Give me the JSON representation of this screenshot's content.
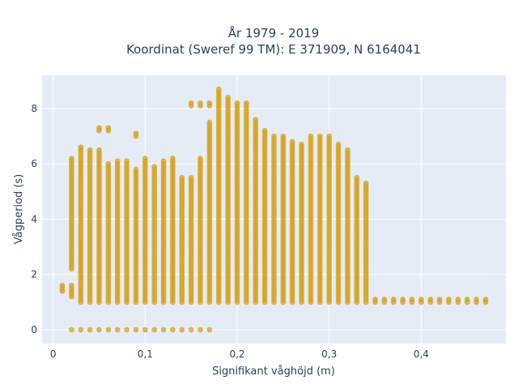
{
  "chart_data": {
    "type": "scatter",
    "title_lines": [
      "År 1979 - 2019",
      "Koordinat (Sweref 99 TM): E 371909, N 6164041"
    ],
    "xlabel": "Signifikant våghöjd (m)",
    "ylabel": "Vågperiod (s)",
    "xlim": [
      -0.012,
      0.492
    ],
    "ylim": [
      -0.5,
      9.2
    ],
    "xticks": [
      {
        "value": 0,
        "label": "0"
      },
      {
        "value": 0.1,
        "label": "0,1"
      },
      {
        "value": 0.2,
        "label": "0,2"
      },
      {
        "value": 0.3,
        "label": "0,3"
      },
      {
        "value": 0.4,
        "label": "0,4"
      }
    ],
    "yticks": [
      {
        "value": 0,
        "label": "0"
      },
      {
        "value": 2,
        "label": "2"
      },
      {
        "value": 4,
        "label": "4"
      },
      {
        "value": 6,
        "label": "6"
      },
      {
        "value": 8,
        "label": "8"
      }
    ],
    "grid": true,
    "marker_color": "#d4a017",
    "series": [
      {
        "columns": [
          [
            0.01,
            [
              [
                1.4,
                1.6
              ]
            ]
          ],
          [
            0.02,
            [
              [
                0,
                0
              ],
              [
                1.2,
                1.6
              ],
              [
                2.2,
                6.2
              ]
            ]
          ],
          [
            0.03,
            [
              [
                0,
                0
              ],
              [
                1.0,
                6.6
              ]
            ]
          ],
          [
            0.04,
            [
              [
                0,
                0
              ],
              [
                1.0,
                6.5
              ]
            ]
          ],
          [
            0.05,
            [
              [
                0,
                0
              ],
              [
                1.0,
                6.5
              ],
              [
                7.2,
                7.3
              ]
            ]
          ],
          [
            0.06,
            [
              [
                0,
                0
              ],
              [
                1.0,
                6.0
              ],
              [
                7.2,
                7.3
              ]
            ]
          ],
          [
            0.07,
            [
              [
                0,
                0
              ],
              [
                1.0,
                6.1
              ]
            ]
          ],
          [
            0.08,
            [
              [
                0,
                0
              ],
              [
                1.0,
                6.1
              ]
            ]
          ],
          [
            0.09,
            [
              [
                0,
                0
              ],
              [
                1.0,
                5.8
              ],
              [
                7.0,
                7.1
              ]
            ]
          ],
          [
            0.1,
            [
              [
                0,
                0
              ],
              [
                1.0,
                6.2
              ]
            ]
          ],
          [
            0.11,
            [
              [
                0,
                0
              ],
              [
                1.0,
                5.9
              ]
            ]
          ],
          [
            0.12,
            [
              [
                0,
                0
              ],
              [
                1.0,
                6.1
              ]
            ]
          ],
          [
            0.13,
            [
              [
                0,
                0
              ],
              [
                1.0,
                6.2
              ]
            ]
          ],
          [
            0.14,
            [
              [
                0,
                0
              ],
              [
                1.0,
                5.5
              ]
            ]
          ],
          [
            0.15,
            [
              [
                0,
                0
              ],
              [
                1.0,
                5.5
              ],
              [
                8.1,
                8.2
              ]
            ]
          ],
          [
            0.16,
            [
              [
                0,
                0
              ],
              [
                1.0,
                6.2
              ],
              [
                8.1,
                8.2
              ]
            ]
          ],
          [
            0.17,
            [
              [
                0,
                0
              ],
              [
                1.0,
                7.5
              ],
              [
                8.1,
                8.2
              ]
            ]
          ],
          [
            0.18,
            [
              [
                1.0,
                8.7
              ]
            ]
          ],
          [
            0.19,
            [
              [
                1.0,
                8.4
              ]
            ]
          ],
          [
            0.2,
            [
              [
                1.0,
                8.2
              ]
            ]
          ],
          [
            0.21,
            [
              [
                1.0,
                8.2
              ]
            ]
          ],
          [
            0.22,
            [
              [
                1.0,
                7.6
              ]
            ]
          ],
          [
            0.23,
            [
              [
                1.0,
                7.2
              ]
            ]
          ],
          [
            0.24,
            [
              [
                1.0,
                7.0
              ]
            ]
          ],
          [
            0.25,
            [
              [
                1.0,
                7.0
              ]
            ]
          ],
          [
            0.26,
            [
              [
                1.0,
                6.8
              ]
            ]
          ],
          [
            0.27,
            [
              [
                1.0,
                6.7
              ]
            ]
          ],
          [
            0.28,
            [
              [
                1.0,
                7.0
              ]
            ]
          ],
          [
            0.29,
            [
              [
                1.0,
                7.0
              ]
            ]
          ],
          [
            0.3,
            [
              [
                1.0,
                7.0
              ]
            ]
          ],
          [
            0.31,
            [
              [
                1.0,
                6.7
              ]
            ]
          ],
          [
            0.32,
            [
              [
                1.0,
                6.5
              ]
            ]
          ],
          [
            0.33,
            [
              [
                1.0,
                5.5
              ]
            ]
          ],
          [
            0.34,
            [
              [
                1.0,
                5.3
              ]
            ]
          ],
          [
            0.35,
            [
              [
                1.0,
                1.1
              ]
            ]
          ],
          [
            0.36,
            [
              [
                1.0,
                1.1
              ]
            ]
          ],
          [
            0.37,
            [
              [
                1.0,
                1.1
              ]
            ]
          ],
          [
            0.38,
            [
              [
                1.0,
                1.1
              ]
            ]
          ],
          [
            0.39,
            [
              [
                1.0,
                1.1
              ]
            ]
          ],
          [
            0.4,
            [
              [
                1.0,
                1.1
              ]
            ]
          ],
          [
            0.41,
            [
              [
                1.0,
                1.1
              ]
            ]
          ],
          [
            0.42,
            [
              [
                1.0,
                1.1
              ]
            ]
          ],
          [
            0.43,
            [
              [
                1.0,
                1.1
              ]
            ]
          ],
          [
            0.44,
            [
              [
                1.0,
                1.1
              ]
            ]
          ],
          [
            0.45,
            [
              [
                1.0,
                1.1
              ]
            ]
          ],
          [
            0.46,
            [
              [
                1.0,
                1.1
              ]
            ]
          ],
          [
            0.47,
            [
              [
                1.0,
                1.1
              ]
            ]
          ]
        ]
      }
    ]
  }
}
